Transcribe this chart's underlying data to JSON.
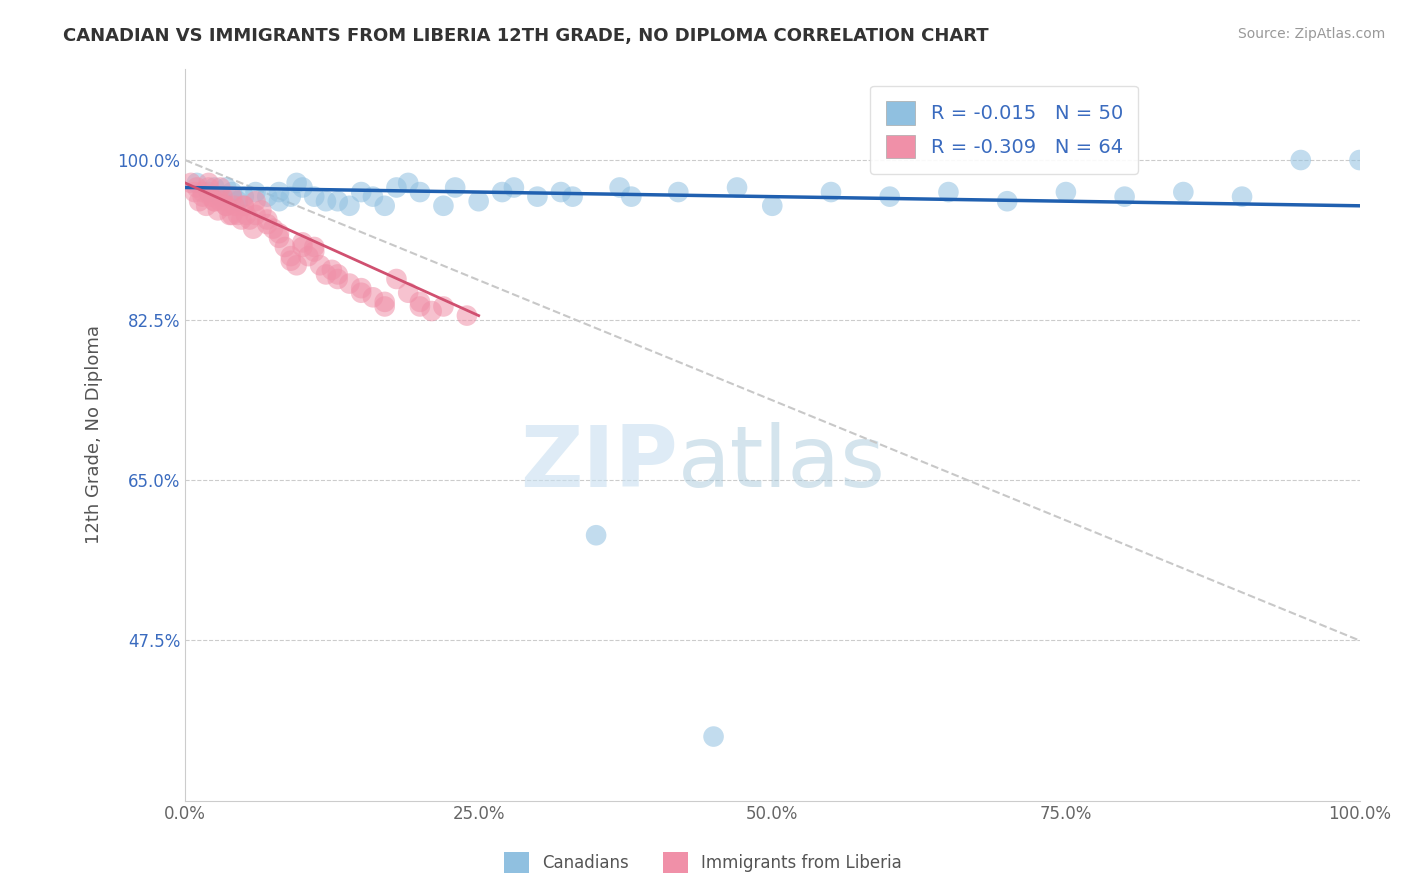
{
  "title": "CANADIAN VS IMMIGRANTS FROM LIBERIA 12TH GRADE, NO DIPLOMA CORRELATION CHART",
  "source": "Source: ZipAtlas.com",
  "ylabel": "12th Grade, No Diploma",
  "watermark_zip": "ZIP",
  "watermark_atlas": "atlas",
  "legend_entries": [
    {
      "label": "R = -0.015   N = 50",
      "color": "#a8c8e8"
    },
    {
      "label": "R = -0.309   N = 64",
      "color": "#f4b8c8"
    }
  ],
  "canadians_x": [
    1.0,
    2.0,
    2.5,
    3.0,
    3.5,
    4.0,
    4.5,
    5.0,
    6.0,
    7.0,
    8.0,
    9.0,
    10.0,
    12.0,
    14.0,
    15.0,
    17.0,
    18.0,
    20.0,
    22.0,
    25.0,
    28.0,
    30.0,
    33.0,
    38.0,
    42.0,
    47.0,
    50.0,
    55.0,
    60.0,
    65.0,
    70.0,
    75.0,
    80.0,
    85.0,
    90.0,
    95.0,
    100.0,
    35.0,
    45.0,
    8.0,
    9.5,
    11.0,
    13.0,
    16.0,
    19.0,
    23.0,
    27.0,
    32.0,
    37.0
  ],
  "canadians_y": [
    97.5,
    96.5,
    97.0,
    96.0,
    97.0,
    96.5,
    95.5,
    96.0,
    96.5,
    96.0,
    95.5,
    96.0,
    97.0,
    95.5,
    95.0,
    96.5,
    95.0,
    97.0,
    96.5,
    95.0,
    95.5,
    97.0,
    96.0,
    96.0,
    96.0,
    96.5,
    97.0,
    95.0,
    96.5,
    96.0,
    96.5,
    95.5,
    96.5,
    96.0,
    96.5,
    96.0,
    100.0,
    100.0,
    59.0,
    37.0,
    96.5,
    97.5,
    96.0,
    95.5,
    96.0,
    97.5,
    97.0,
    96.5,
    96.5,
    97.0
  ],
  "liberia_x": [
    0.5,
    0.8,
    1.0,
    1.2,
    1.5,
    1.8,
    2.0,
    2.2,
    2.5,
    2.8,
    3.0,
    3.2,
    3.5,
    3.8,
    4.0,
    4.2,
    4.5,
    4.8,
    5.0,
    5.2,
    5.5,
    5.8,
    6.0,
    6.5,
    7.0,
    7.5,
    8.0,
    8.5,
    9.0,
    9.5,
    10.0,
    10.5,
    11.0,
    11.5,
    12.0,
    12.5,
    13.0,
    14.0,
    15.0,
    16.0,
    17.0,
    18.0,
    19.0,
    20.0,
    21.0,
    22.0,
    24.0,
    5.0,
    8.0,
    15.0,
    2.0,
    3.0,
    4.0,
    6.0,
    7.0,
    9.0,
    11.0,
    13.0,
    17.0,
    20.0,
    1.5,
    2.5,
    3.5,
    10.0
  ],
  "liberia_y": [
    97.5,
    96.5,
    97.0,
    95.5,
    96.0,
    95.0,
    97.5,
    96.0,
    95.5,
    94.5,
    97.0,
    96.0,
    95.0,
    94.0,
    96.0,
    95.0,
    94.0,
    93.5,
    95.0,
    94.0,
    93.5,
    92.5,
    95.5,
    94.5,
    93.5,
    92.5,
    91.5,
    90.5,
    89.5,
    88.5,
    90.5,
    89.5,
    90.5,
    88.5,
    87.5,
    88.0,
    87.0,
    86.5,
    85.5,
    85.0,
    84.0,
    87.0,
    85.5,
    84.5,
    83.5,
    84.0,
    83.0,
    95.0,
    92.0,
    86.0,
    97.0,
    95.5,
    94.0,
    94.0,
    93.0,
    89.0,
    90.0,
    87.5,
    84.5,
    84.0,
    96.5,
    95.5,
    95.0,
    91.0
  ],
  "canadian_color": "#90c0e0",
  "liberia_color": "#f090a8",
  "canadian_trend_color": "#2060b0",
  "liberia_trend_color": "#d05070",
  "diagonal_color": "#c8c8c8",
  "y_ticks": [
    47.5,
    65.0,
    82.5,
    100.0
  ],
  "x_ticks": [
    0.0,
    25.0,
    50.0,
    75.0,
    100.0
  ],
  "x_tick_labels": [
    "0.0%",
    "25.0%",
    "50.0%",
    "75.0%",
    "100.0%"
  ],
  "y_tick_labels": [
    "47.5%",
    "65.0%",
    "82.5%",
    "100.0%"
  ],
  "xlim": [
    0,
    100
  ],
  "ylim": [
    30,
    110
  ],
  "canadian_trend_y0": 97.0,
  "canadian_trend_y1": 95.0,
  "liberia_trend_y0": 97.5,
  "liberia_trend_y1": 83.0
}
